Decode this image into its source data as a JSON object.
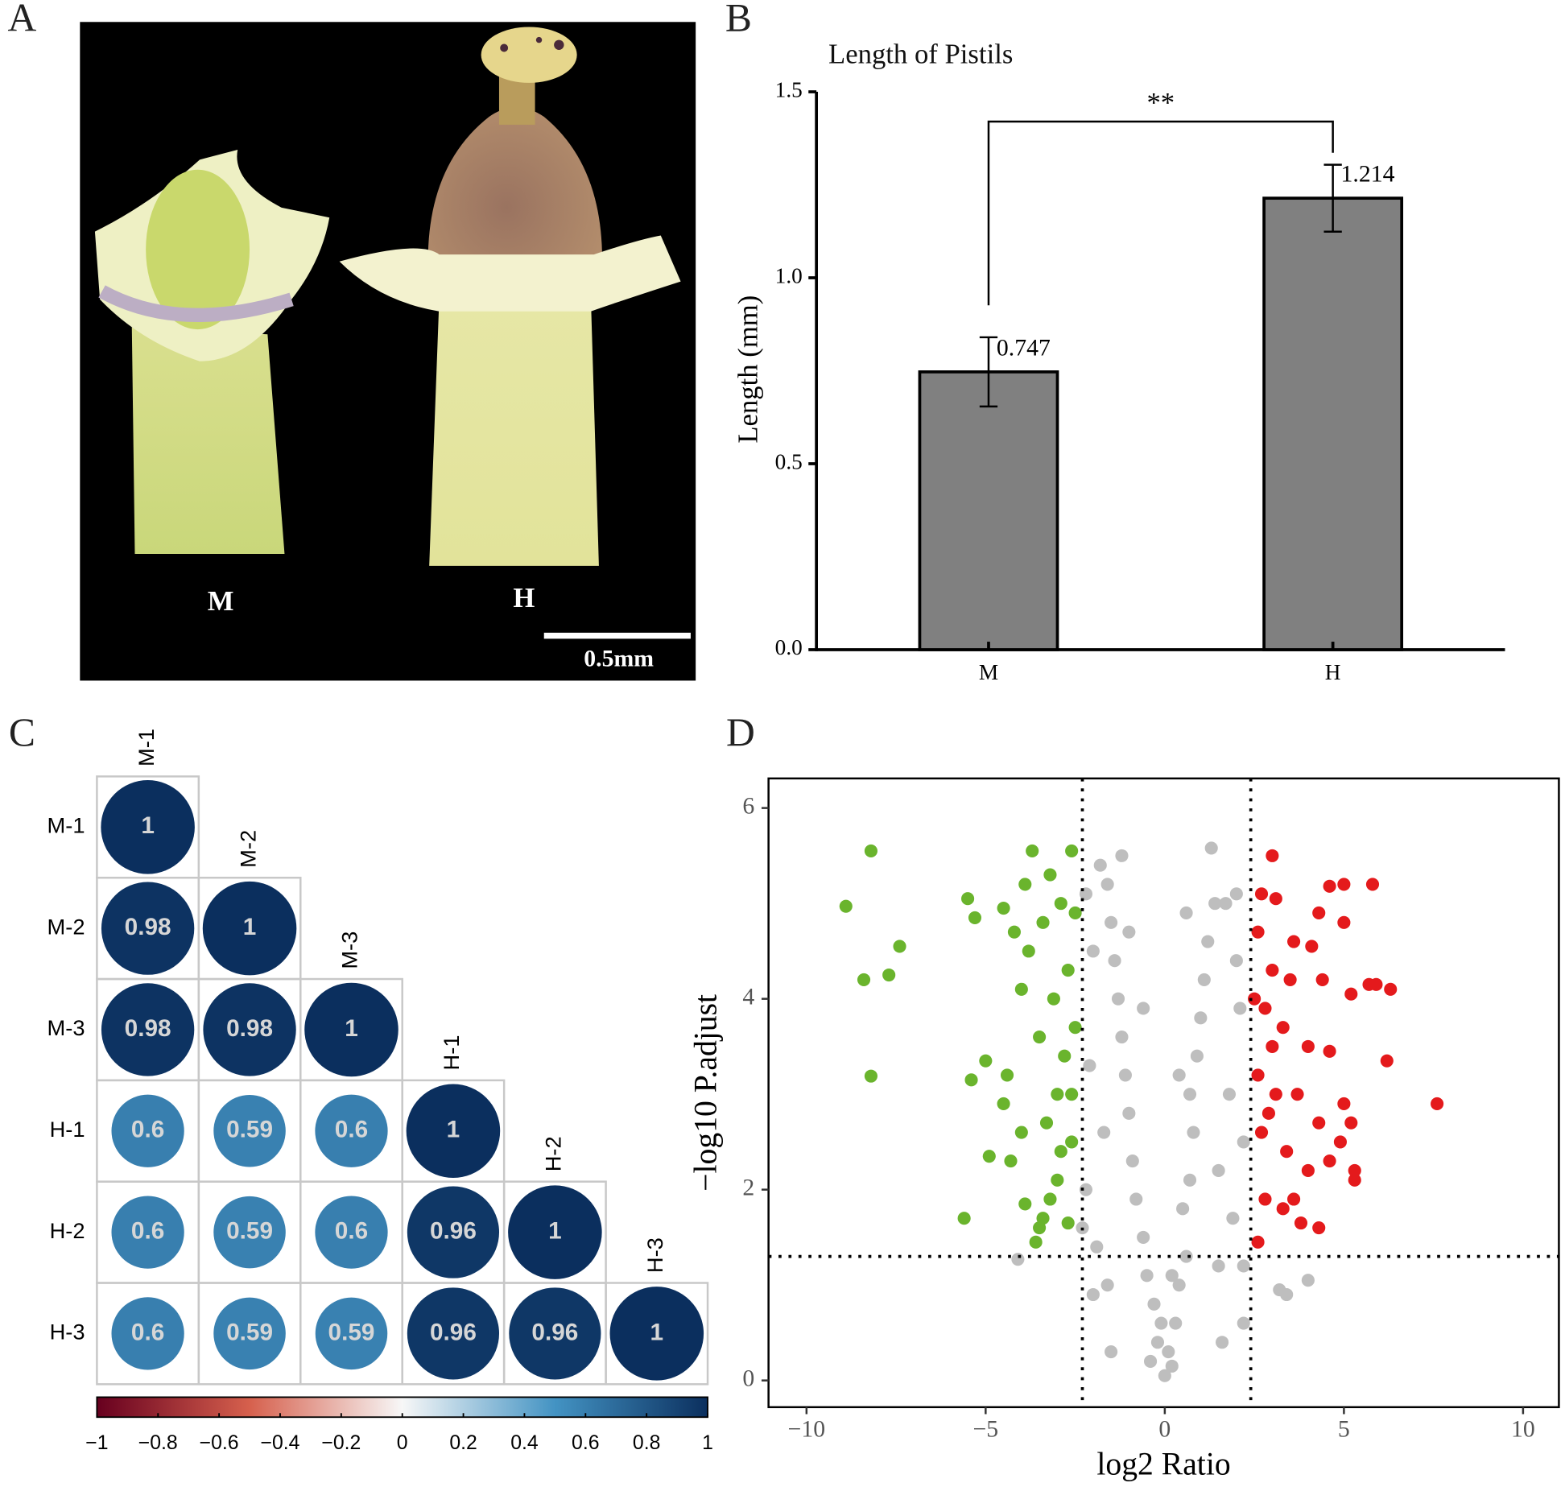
{
  "panel_a": {
    "panel": "A",
    "labels": [
      "M",
      "H"
    ],
    "scale_bar_label": "0.5mm"
  },
  "chart_data": [
    {
      "type": "bar",
      "panel": "B",
      "title": "Length of Pistils",
      "y_label": "Length (mm)",
      "categories": [
        "M",
        "H"
      ],
      "values": [
        0.747,
        1.214
      ],
      "errors": [
        0.093,
        0.09
      ],
      "color": "#808080",
      "ylim": [
        0,
        1.5
      ],
      "yticks": [
        {
          "value": 0,
          "label": "0.0"
        },
        0.5,
        {
          "value": 1,
          "label": "1.0"
        },
        1.5
      ],
      "significance": {
        "text": "**",
        "y": 1.42
      }
    },
    {
      "type": "correlation",
      "panel": "C",
      "labels": [
        "M-1",
        "M-2",
        "M-3",
        "H-1",
        "H-2",
        "H-3"
      ],
      "matrix": [
        [
          1
        ],
        [
          0.98,
          1
        ],
        [
          0.98,
          0.98,
          1
        ],
        [
          0.6,
          0.59,
          0.6,
          1
        ],
        [
          0.6,
          0.59,
          0.6,
          0.96,
          1
        ],
        [
          0.6,
          0.59,
          0.59,
          0.96,
          0.96,
          1
        ]
      ],
      "colorscale": [
        {
          "value": -1,
          "color": "#67001f"
        },
        {
          "value": -0.5,
          "color": "#d6604d"
        },
        {
          "value": 0,
          "color": "#f7f7f7"
        },
        {
          "value": 0.5,
          "color": "#4393c3"
        },
        {
          "value": 1,
          "color": "#0b2f5e"
        }
      ],
      "colorbar_lim": [
        -1,
        1
      ],
      "colorbar_ticks": [
        {
          "value": -1,
          "label": "−1"
        },
        {
          "value": -0.8,
          "label": "−0.8"
        },
        {
          "value": -0.6,
          "label": "−0.6"
        },
        {
          "value": -0.4,
          "label": "−0.4"
        },
        {
          "value": -0.2,
          "label": "−0.2"
        },
        0,
        0.2,
        0.4,
        0.6,
        0.8,
        1
      ]
    },
    {
      "type": "scatter",
      "panel": "D",
      "x_label": "log2 Ratio",
      "y_label": "−log10 P.adjust",
      "xlim": [
        -11.06,
        11.0
      ],
      "ylim": [
        -0.28,
        6.31
      ],
      "xticks": [
        {
          "value": -10,
          "label": "−10"
        },
        {
          "value": -5,
          "label": "−5"
        },
        0,
        5,
        10
      ],
      "yticks": [
        0,
        2,
        4,
        6
      ],
      "vlines": [
        -2.3,
        2.4
      ],
      "hlines": [
        1.3
      ],
      "series": [
        {
          "color": "#bebebe",
          "x": [
            0,
            0.1,
            -0.2,
            0.3,
            -0.3,
            0.4,
            -0.5,
            0.6,
            -0.6,
            0.5,
            -0.8,
            0.7,
            -0.9,
            0.8,
            -1.0,
            0.7,
            -1.1,
            0.9,
            -1.2,
            1.0,
            -1.3,
            1.1,
            -1.4,
            1.2,
            -1.5,
            1.4,
            -1.6,
            2.0,
            -1.8,
            -1.2,
            1.3,
            -1.6,
            1.5,
            -2.0,
            2.2,
            -1.5,
            1.6,
            -2.2,
            2.2,
            -2.1,
            2.1,
            -2.0,
            2.0,
            1.8,
            -1.7,
            1.5,
            -0.4,
            0.2,
            -0.1,
            0.2,
            -1.9,
            1.9,
            2.2,
            -2.3,
            -4.1,
            3.2,
            3.4,
            4.0,
            -1.0,
            0.6,
            1.7,
            -0.6,
            0.4,
            -2.2
          ],
          "y": [
            0.05,
            0.3,
            0.4,
            0.6,
            0.8,
            1.0,
            1.1,
            1.3,
            1.5,
            1.8,
            1.9,
            2.1,
            2.3,
            2.6,
            2.8,
            3.0,
            3.2,
            3.4,
            3.6,
            3.8,
            4.0,
            4.2,
            4.4,
            4.6,
            4.8,
            5.0,
            5.2,
            5.1,
            5.4,
            5.5,
            5.58,
            1.0,
            1.2,
            0.9,
            0.6,
            0.3,
            0.4,
            2.0,
            2.5,
            3.3,
            3.9,
            4.5,
            4.4,
            3.0,
            2.6,
            2.2,
            0.2,
            0.15,
            0.6,
            1.1,
            1.4,
            1.7,
            1.2,
            1.6,
            1.27,
            0.95,
            0.9,
            1.05,
            4.7,
            4.9,
            5.0,
            3.9,
            3.2,
            5.1
          ]
        },
        {
          "color": "#6ab42d",
          "x": [
            -8.2,
            -8.9,
            -7.4,
            -8.4,
            -7.7,
            -8.2,
            -5.5,
            -5.3,
            -5.0,
            -5.4,
            -4.9,
            -4.5,
            -5.6,
            -4.4,
            -4.3,
            -4.0,
            -3.9,
            -3.6,
            -3.4,
            -3.2,
            -3.0,
            -3.3,
            -3.0,
            -2.8,
            -3.5,
            -3.1,
            -2.7,
            -3.8,
            -3.4,
            -2.9,
            -4.5,
            -4.2,
            -3.9,
            -3.7,
            -2.6,
            -2.5,
            -2.6,
            -2.7,
            -3.5,
            -2.5,
            -3.2,
            -4.0,
            -2.6,
            -2.9
          ],
          "y": [
            5.55,
            4.97,
            4.55,
            4.2,
            4.25,
            3.19,
            5.05,
            4.85,
            3.35,
            3.15,
            2.35,
            2.9,
            1.7,
            3.2,
            2.3,
            2.6,
            1.85,
            1.45,
            1.7,
            1.9,
            2.1,
            2.7,
            3.0,
            3.4,
            3.6,
            4.0,
            4.3,
            4.5,
            4.8,
            5.0,
            4.95,
            4.7,
            5.2,
            5.55,
            5.55,
            3.7,
            2.5,
            1.65,
            1.6,
            4.9,
            5.3,
            4.1,
            3.0,
            2.4
          ]
        },
        {
          "color": "#e41a1c",
          "x": [
            3.0,
            4.6,
            5.8,
            5.0,
            3.1,
            2.7,
            4.3,
            3.6,
            4.1,
            5.0,
            2.6,
            3.0,
            3.5,
            4.4,
            5.2,
            5.7,
            5.9,
            6.3,
            2.8,
            3.3,
            4.0,
            4.6,
            6.2,
            2.6,
            3.1,
            3.7,
            4.3,
            5.0,
            5.2,
            7.6,
            2.7,
            3.4,
            4.0,
            4.6,
            5.3,
            5.3,
            2.8,
            3.3,
            3.8,
            4.3,
            2.6,
            3.6,
            2.9,
            4.9,
            3.0,
            2.5
          ],
          "y": [
            5.5,
            5.18,
            5.2,
            5.2,
            5.05,
            5.1,
            4.9,
            4.6,
            4.55,
            4.8,
            4.7,
            4.3,
            4.2,
            4.2,
            4.05,
            4.15,
            4.15,
            4.1,
            3.9,
            3.7,
            3.5,
            3.45,
            3.35,
            3.2,
            3.0,
            3.0,
            2.7,
            2.9,
            2.7,
            2.9,
            2.6,
            2.4,
            2.2,
            2.3,
            2.2,
            2.1,
            1.9,
            1.8,
            1.65,
            1.6,
            1.45,
            1.9,
            2.8,
            2.5,
            3.5,
            4.0
          ]
        }
      ]
    }
  ]
}
